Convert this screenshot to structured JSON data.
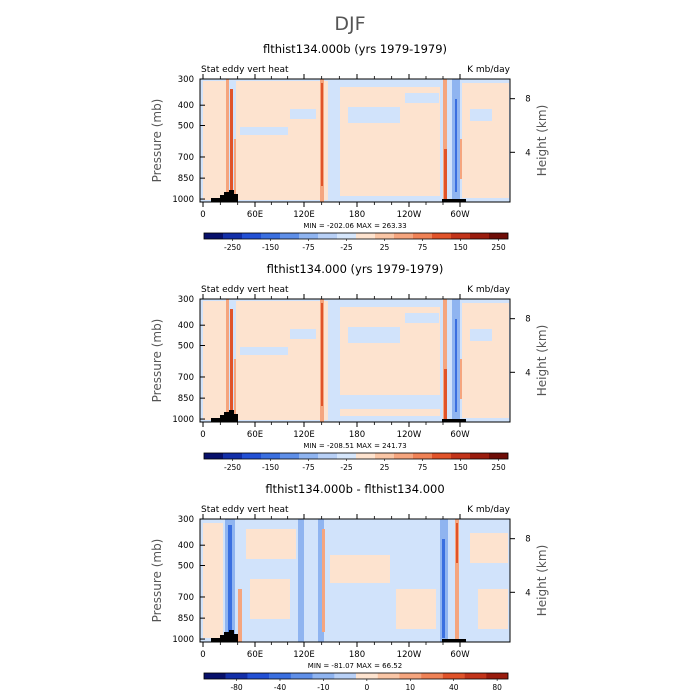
{
  "figure": {
    "season": "DJF",
    "colors": {
      "bg": "#d1e3fb",
      "warm_light": "#fde3cf",
      "warm_mid": "#f5a57e",
      "warm_strong": "#e0532a",
      "cool_mid": "#8fb4f0",
      "cool_strong": "#3a6fe0",
      "topo": "#000000"
    }
  },
  "chart_data": [
    {
      "type": "heatmap",
      "title": "flthist134.000b (yrs 1979-1979)",
      "left_label": "Stat eddy vert heat",
      "right_label": "K mb/day",
      "ylabel": "Pressure (mb)",
      "ylabel_right": "Height (km)",
      "y_ticks": [
        "300",
        "400",
        "500",
        "700",
        "850",
        "1000"
      ],
      "y_ticks_right": [
        "8",
        "4"
      ],
      "x_ticks": [
        "0",
        "60E",
        "120E",
        "180",
        "120W",
        "60W"
      ],
      "stats": "MIN = -202.06   MAX = 263.33",
      "min": -202.06,
      "max": 263.33,
      "colorbar_labels": [
        "-250",
        "-150",
        "-75",
        "-25",
        "25",
        "75",
        "150",
        "250"
      ],
      "colorbar_colors": [
        "#08116b",
        "#132fa8",
        "#2350d4",
        "#3a6fe0",
        "#5f8fe8",
        "#8fb4f0",
        "#b8d0f6",
        "#d6e6fb",
        "#fde3cf",
        "#f9c6a6",
        "#f5a57e",
        "#ef8256",
        "#e0532a",
        "#c2341a",
        "#9a1c0e",
        "#6e0d07"
      ]
    },
    {
      "type": "heatmap",
      "title": "flthist134.000 (yrs 1979-1979)",
      "left_label": "Stat eddy vert heat",
      "right_label": "K mb/day",
      "ylabel": "Pressure (mb)",
      "ylabel_right": "Height (km)",
      "y_ticks": [
        "300",
        "400",
        "500",
        "700",
        "850",
        "1000"
      ],
      "y_ticks_right": [
        "8",
        "4"
      ],
      "x_ticks": [
        "0",
        "60E",
        "120E",
        "180",
        "120W",
        "60W"
      ],
      "stats": "MIN = -208.51   MAX = 241.73",
      "min": -208.51,
      "max": 241.73,
      "colorbar_labels": [
        "-250",
        "-150",
        "-75",
        "-25",
        "25",
        "75",
        "150",
        "250"
      ],
      "colorbar_colors": [
        "#08116b",
        "#132fa8",
        "#2350d4",
        "#3a6fe0",
        "#5f8fe8",
        "#8fb4f0",
        "#b8d0f6",
        "#d6e6fb",
        "#fde3cf",
        "#f9c6a6",
        "#f5a57e",
        "#ef8256",
        "#e0532a",
        "#c2341a",
        "#9a1c0e",
        "#6e0d07"
      ]
    },
    {
      "type": "heatmap",
      "title": "flthist134.000b - flthist134.000",
      "left_label": "Stat eddy vert heat",
      "right_label": "K mb/day",
      "ylabel": "Pressure (mb)",
      "ylabel_right": "Height (km)",
      "y_ticks": [
        "300",
        "400",
        "500",
        "700",
        "850",
        "1000"
      ],
      "y_ticks_right": [
        "8",
        "4"
      ],
      "x_ticks": [
        "0",
        "60E",
        "120E",
        "180",
        "120W",
        "60W"
      ],
      "stats": "MIN = -81.07   MAX =  66.52",
      "min": -81.07,
      "max": 66.52,
      "colorbar_labels": [
        "-80",
        "-40",
        "-10",
        "0",
        "10",
        "40",
        "80"
      ],
      "colorbar_colors": [
        "#08116b",
        "#132fa8",
        "#2350d4",
        "#3a6fe0",
        "#5f8fe8",
        "#8fb4f0",
        "#b8d0f6",
        "#fde3cf",
        "#f9c6a6",
        "#f5a57e",
        "#ef8256",
        "#e0532a",
        "#c2341a",
        "#9a1c0e"
      ]
    }
  ]
}
